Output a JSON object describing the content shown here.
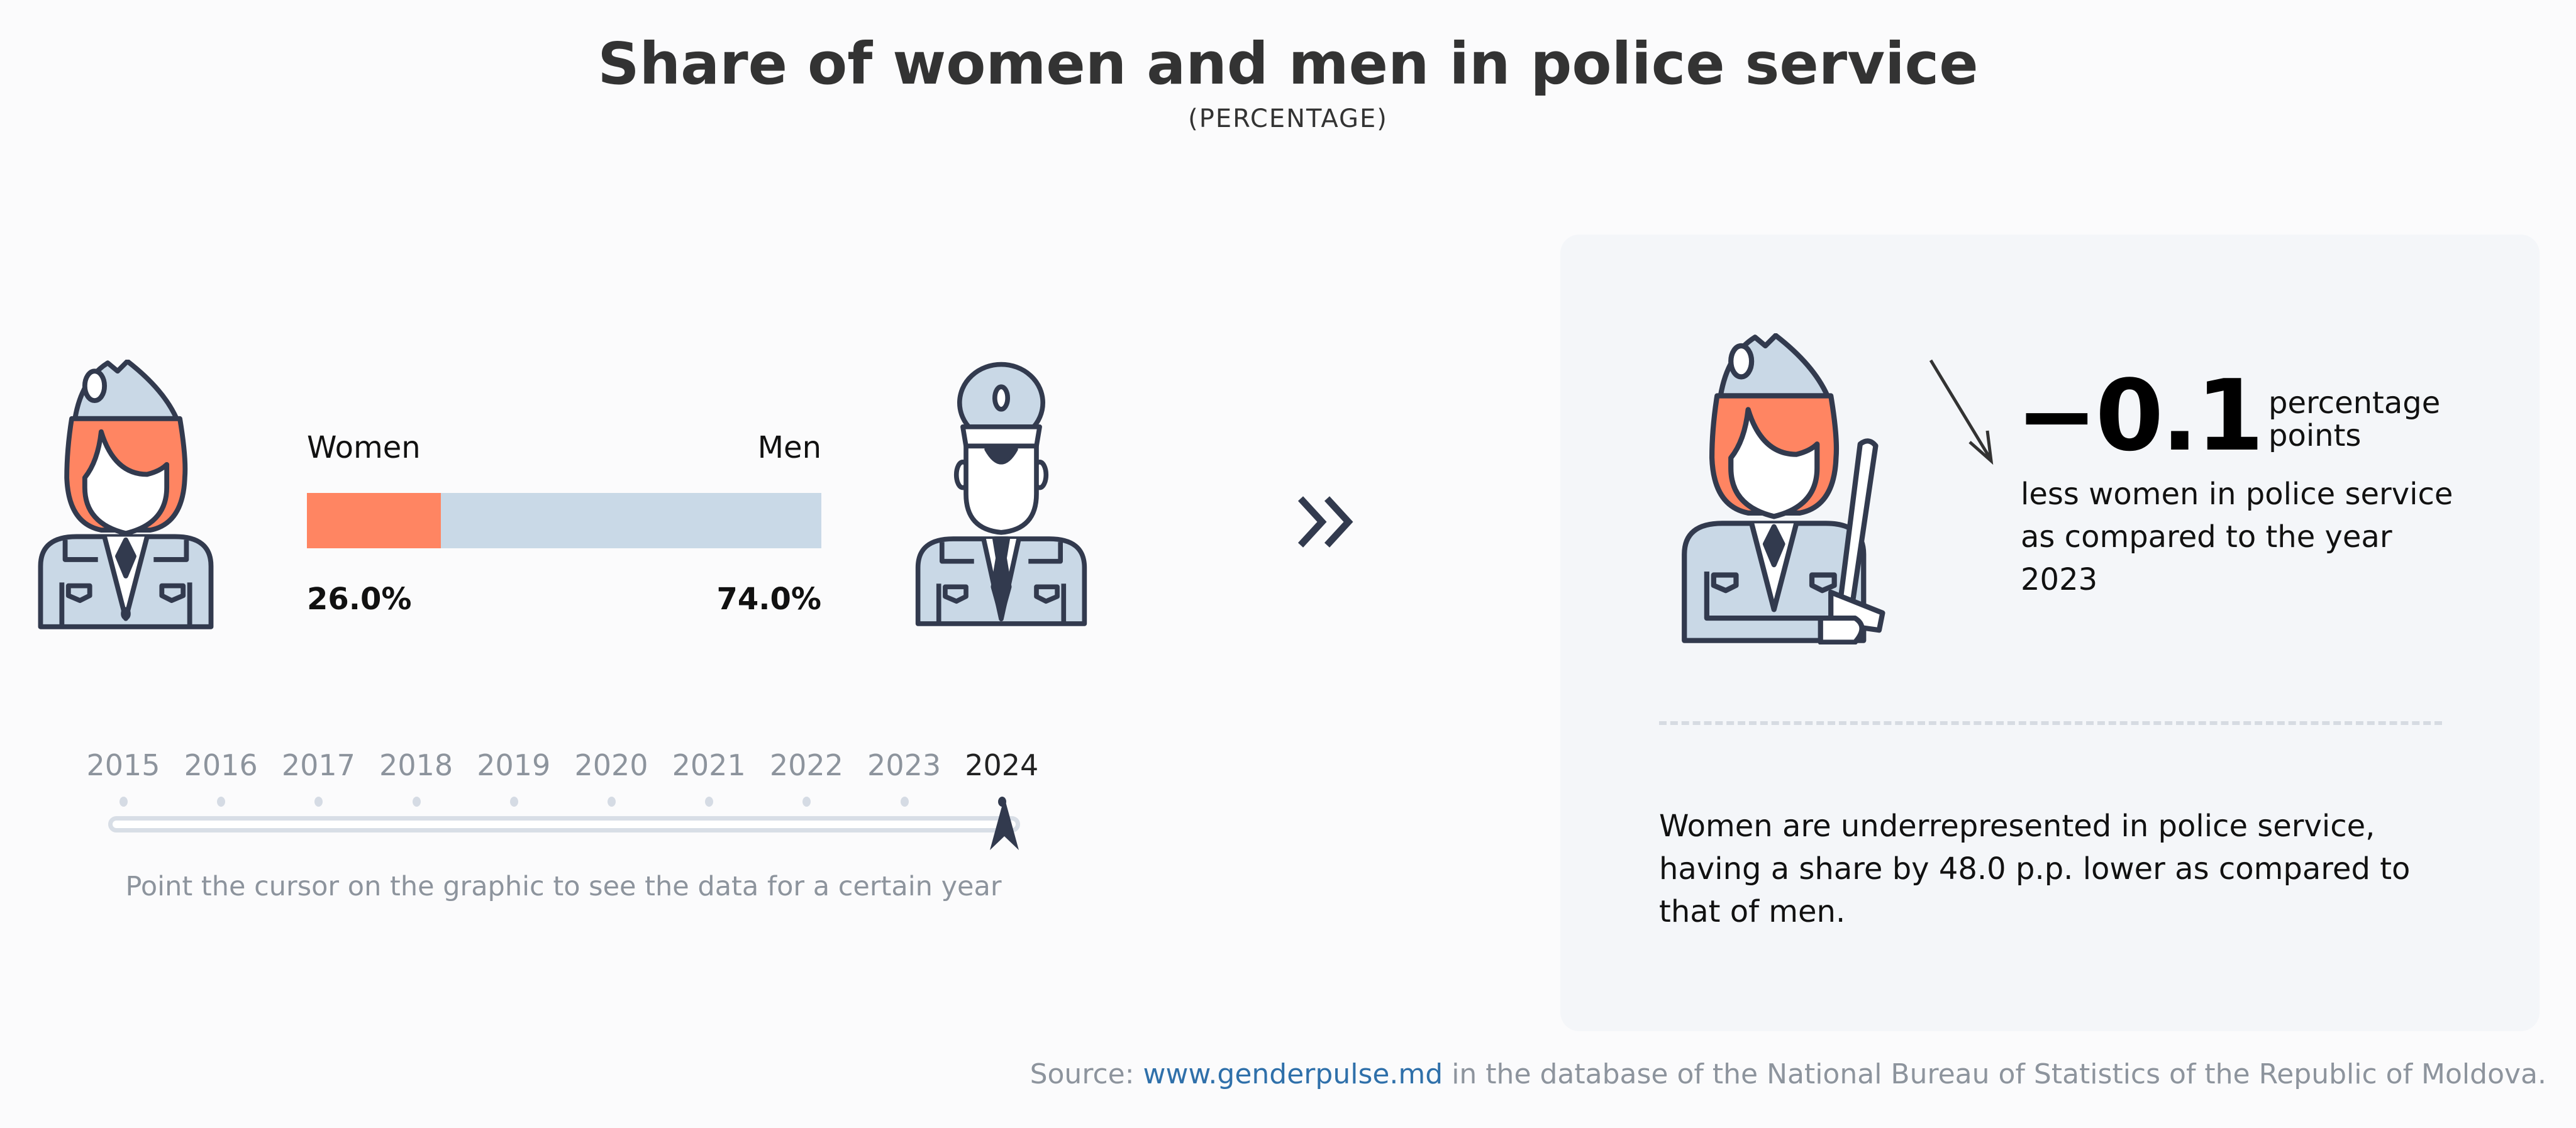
{
  "header": {
    "title": "Share of women and men in police service",
    "subtitle": "(PERCENTAGE)"
  },
  "chart_data": {
    "type": "bar",
    "orientation": "horizontal-stacked",
    "title": "Share of women and men in police service",
    "subtitle": "(PERCENTAGE)",
    "categories": [
      "Women",
      "Men"
    ],
    "values": [
      26.0,
      74.0
    ],
    "value_labels": [
      "26.0%",
      "74.0%"
    ],
    "year": "2024",
    "xlim": [
      0,
      100
    ],
    "colors": {
      "Women": "#ff8562",
      "Men": "#c9d9e7"
    }
  },
  "labels": {
    "women": "Women",
    "men": "Men",
    "women_value": "26.0%",
    "men_value": "74.0%"
  },
  "timeline": {
    "years": [
      "2015",
      "2016",
      "2017",
      "2018",
      "2019",
      "2020",
      "2021",
      "2022",
      "2023",
      "2024"
    ],
    "selected": "2024",
    "hint": "Point the cursor on the graphic to see the data for a certain year"
  },
  "panel": {
    "change_value": "−0.1",
    "change_unit": "percentage points",
    "change_text": "less women in police service as compared to the year 2023",
    "summary": "Women are underrepresented in police service, having a share by 48.0 p.p. lower as compared to that of men."
  },
  "source": {
    "prefix": "Source: ",
    "link": "www.genderpulse.md",
    "suffix": " in the database of the National Bureau of Statistics of the Republic of Moldova."
  },
  "colors": {
    "accent": "#ff8562",
    "uniform": "#c9d9e7",
    "outline": "#323a4e"
  }
}
